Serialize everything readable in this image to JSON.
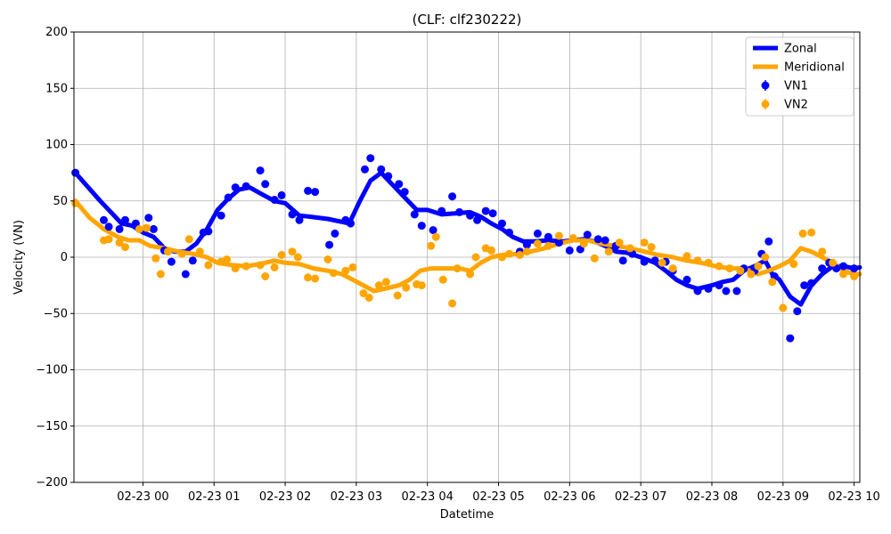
{
  "chart_data": {
    "type": "line",
    "title": "(CLF: clf230222)",
    "xlabel": "Datetime",
    "ylabel": "Velocity (VN)",
    "ylim": [
      -200,
      200
    ],
    "xlim_hours": [
      -0.97,
      10.08
    ],
    "yticks": [
      -200,
      -150,
      -100,
      -50,
      0,
      50,
      100,
      150,
      200
    ],
    "xticks": [
      {
        "h": 0,
        "label": "02-23 00"
      },
      {
        "h": 1,
        "label": "02-23 01"
      },
      {
        "h": 2,
        "label": "02-23 02"
      },
      {
        "h": 3,
        "label": "02-23 03"
      },
      {
        "h": 4,
        "label": "02-23 04"
      },
      {
        "h": 5,
        "label": "02-23 05"
      },
      {
        "h": 6,
        "label": "02-23 06"
      },
      {
        "h": 7,
        "label": "02-23 07"
      },
      {
        "h": 8,
        "label": "02-23 08"
      },
      {
        "h": 9,
        "label": "02-23 09"
      },
      {
        "h": 10,
        "label": "02-23 10"
      }
    ],
    "grid": true,
    "legend_position": "top-right",
    "series": [
      {
        "name": "Zonal",
        "kind": "line",
        "color": "#0000ff",
        "x": [
          -0.95,
          -0.6,
          -0.3,
          -0.15,
          0.0,
          0.15,
          0.3,
          0.45,
          0.6,
          0.75,
          0.9,
          1.05,
          1.2,
          1.35,
          1.5,
          1.7,
          1.85,
          2.0,
          2.2,
          2.35,
          2.6,
          2.75,
          2.9,
          3.05,
          3.2,
          3.35,
          3.5,
          3.65,
          3.85,
          4.0,
          4.2,
          4.4,
          4.6,
          4.75,
          4.9,
          5.05,
          5.2,
          5.35,
          5.5,
          5.7,
          5.9,
          6.05,
          6.2,
          6.35,
          6.5,
          6.65,
          6.8,
          7.0,
          7.2,
          7.35,
          7.5,
          7.65,
          7.8,
          8.0,
          8.15,
          8.3,
          8.45,
          8.6,
          8.75,
          8.85,
          8.95,
          9.1,
          9.25,
          9.4,
          9.55,
          9.7,
          9.85,
          10.0,
          10.08
        ],
        "y": [
          75,
          50,
          30,
          28,
          22,
          18,
          8,
          5,
          5,
          12,
          25,
          42,
          52,
          60,
          62,
          55,
          50,
          48,
          37,
          36,
          34,
          32,
          30,
          50,
          68,
          75,
          65,
          55,
          42,
          42,
          38,
          39,
          40,
          36,
          30,
          25,
          18,
          14,
          14,
          15,
          14,
          15,
          16,
          14,
          10,
          5,
          4,
          0,
          -5,
          -12,
          -20,
          -25,
          -28,
          -25,
          -22,
          -20,
          -12,
          -8,
          -3,
          -15,
          -20,
          -35,
          -42,
          -25,
          -15,
          -8,
          -8,
          -10,
          -9
        ]
      },
      {
        "name": "Meridional",
        "kind": "line",
        "color": "#ffa500",
        "x": [
          -0.95,
          -0.75,
          -0.55,
          -0.35,
          -0.2,
          -0.05,
          0.1,
          0.3,
          0.5,
          0.7,
          0.9,
          1.05,
          1.25,
          1.45,
          1.65,
          1.85,
          2.0,
          2.2,
          2.4,
          2.6,
          2.8,
          2.95,
          3.1,
          3.25,
          3.4,
          3.6,
          3.75,
          3.9,
          4.05,
          4.25,
          4.45,
          4.6,
          4.75,
          4.9,
          5.05,
          5.25,
          5.45,
          5.65,
          5.85,
          6.05,
          6.25,
          6.45,
          6.65,
          6.85,
          7.05,
          7.25,
          7.45,
          7.65,
          7.85,
          8.05,
          8.25,
          8.45,
          8.65,
          8.8,
          8.95,
          9.1,
          9.25,
          9.4,
          9.55,
          9.7,
          9.85,
          10.0,
          10.08
        ],
        "y": [
          50,
          35,
          25,
          18,
          15,
          15,
          10,
          8,
          5,
          3,
          0,
          -5,
          -7,
          -8,
          -6,
          -3,
          -5,
          -6,
          -10,
          -12,
          -15,
          -20,
          -25,
          -30,
          -28,
          -25,
          -20,
          -12,
          -10,
          -10,
          -10,
          -12,
          -5,
          0,
          2,
          3,
          5,
          8,
          12,
          15,
          15,
          12,
          10,
          8,
          5,
          2,
          0,
          -3,
          -5,
          -8,
          -10,
          -10,
          -15,
          -12,
          -8,
          -3,
          8,
          5,
          0,
          -5,
          -12,
          -15,
          -15
        ]
      },
      {
        "name": "VN1",
        "kind": "scatter",
        "color": "#0000ff",
        "x": [
          -0.95,
          -0.55,
          -0.48,
          -0.33,
          -0.25,
          -0.1,
          0.08,
          0.15,
          0.3,
          0.4,
          0.6,
          0.7,
          0.85,
          0.92,
          1.1,
          1.2,
          1.3,
          1.45,
          1.65,
          1.72,
          1.85,
          1.95,
          2.1,
          2.2,
          2.32,
          2.42,
          2.62,
          2.7,
          2.85,
          2.92,
          3.12,
          3.2,
          3.35,
          3.45,
          3.6,
          3.68,
          3.82,
          3.92,
          4.08,
          4.2,
          4.35,
          4.45,
          4.6,
          4.7,
          4.82,
          4.92,
          5.05,
          5.15,
          5.3,
          5.4,
          5.55,
          5.7,
          5.85,
          6.0,
          6.15,
          6.25,
          6.4,
          6.5,
          6.65,
          6.75,
          6.88,
          7.05,
          7.2,
          7.35,
          7.45,
          7.65,
          7.8,
          7.95,
          8.1,
          8.2,
          8.35,
          8.45,
          8.6,
          8.7,
          8.8,
          8.88,
          9.1,
          9.2,
          9.3,
          9.4,
          9.55,
          9.65,
          9.75,
          9.85,
          10.0
        ],
        "y": [
          75,
          33,
          27,
          25,
          33,
          30,
          35,
          25,
          6,
          -4,
          -15,
          -3,
          22,
          23,
          37,
          53,
          62,
          63,
          77,
          65,
          51,
          55,
          38,
          33,
          59,
          58,
          11,
          21,
          33,
          30,
          78,
          88,
          78,
          72,
          65,
          58,
          38,
          28,
          24,
          41,
          54,
          40,
          37,
          33,
          41,
          39,
          30,
          22,
          5,
          11,
          21,
          18,
          13,
          6,
          7,
          20,
          16,
          15,
          10,
          -3,
          3,
          -4,
          -3,
          -4,
          -12,
          -20,
          -30,
          -28,
          -25,
          -30,
          -30,
          -10,
          -12,
          3,
          14,
          -17,
          -72,
          -48,
          -25,
          -23,
          -10,
          -5,
          -10,
          -8,
          -10
        ]
      },
      {
        "name": "VN2",
        "kind": "scatter",
        "color": "#ffa500",
        "x": [
          -0.95,
          -0.55,
          -0.48,
          -0.33,
          -0.25,
          -0.05,
          0.05,
          0.18,
          0.25,
          0.35,
          0.55,
          0.65,
          0.8,
          0.92,
          1.1,
          1.18,
          1.3,
          1.45,
          1.65,
          1.72,
          1.85,
          1.95,
          2.1,
          2.18,
          2.32,
          2.42,
          2.6,
          2.68,
          2.85,
          2.95,
          3.1,
          3.18,
          3.32,
          3.42,
          3.58,
          3.7,
          3.85,
          3.92,
          4.05,
          4.12,
          4.22,
          4.35,
          4.42,
          4.6,
          4.68,
          4.82,
          4.9,
          5.05,
          5.15,
          5.3,
          5.4,
          5.55,
          5.7,
          5.85,
          6.05,
          6.2,
          6.35,
          6.55,
          6.7,
          6.85,
          7.05,
          7.15,
          7.3,
          7.45,
          7.65,
          7.8,
          7.95,
          8.1,
          8.25,
          8.4,
          8.55,
          8.65,
          8.75,
          8.85,
          9.0,
          9.15,
          9.28,
          9.4,
          9.55,
          9.7,
          9.85,
          10.0
        ],
        "y": [
          48,
          15,
          16,
          13,
          9,
          25,
          26,
          -1,
          -15,
          5,
          3,
          16,
          5,
          -7,
          -4,
          -2,
          -10,
          -8,
          -7,
          -17,
          -9,
          2,
          5,
          0,
          -18,
          -19,
          -2,
          -14,
          -12,
          -9,
          -32,
          -36,
          -25,
          -22,
          -34,
          -27,
          -24,
          -25,
          10,
          18,
          -20,
          -41,
          -10,
          -15,
          0,
          8,
          6,
          0,
          3,
          2,
          5,
          12,
          10,
          19,
          17,
          12,
          -1,
          5,
          13,
          8,
          13,
          9,
          -5,
          -10,
          1,
          -3,
          -5,
          -8,
          -10,
          -12,
          -15,
          -8,
          0,
          -22,
          -45,
          -6,
          21,
          22,
          5,
          -5,
          -15,
          -17
        ]
      }
    ]
  }
}
